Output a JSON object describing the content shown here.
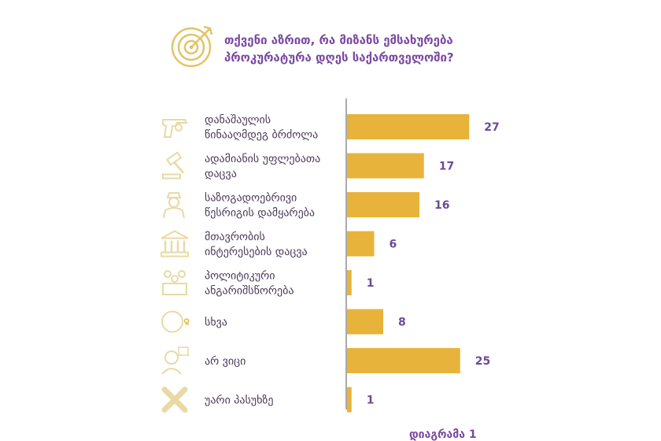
{
  "title": {
    "line1": "თქვენი აზრით, რა მიზანს ემსახურება",
    "line2": "პროკურატურა დღეს საქართველოში?"
  },
  "caption": "დიაგრამა 1",
  "colors": {
    "bar": "#e8b33a",
    "icon": "#e9d9a4",
    "title": "#7a4aa0",
    "value": "#6b4a9a",
    "axis": "#555555"
  },
  "chart_data": {
    "type": "bar",
    "orientation": "horizontal",
    "title": "თქვენი აზრით, რა მიზანს ემსახურება პროკურატურა დღეს საქართველოში?",
    "categories": [
      [
        "დანაშაულის",
        "წინააღმდეგ ბრძოლა"
      ],
      [
        "ადამიანის უფლებათა",
        "დაცვა"
      ],
      [
        "საზოგადოებრივი",
        "წესრიგის დამყარება"
      ],
      [
        "მთავრობის",
        "ინტერესების დაცვა"
      ],
      [
        "პოლიტიკური",
        "ანგარიშსწორება"
      ],
      [
        "სხვა"
      ],
      [
        "არ ვიცი"
      ],
      [
        "უარი პასუხზე"
      ]
    ],
    "icons": [
      "gun-icon",
      "gavel-icon",
      "police-officer-icon",
      "government-building-icon",
      "courtroom-icon",
      "other-icon",
      "question-person-icon",
      "cross-icon"
    ],
    "values": [
      27,
      17,
      16,
      6,
      1,
      8,
      25,
      1
    ],
    "xlim": [
      0,
      30
    ],
    "xlabel": "",
    "ylabel": "",
    "grid": false,
    "legend": "none"
  }
}
